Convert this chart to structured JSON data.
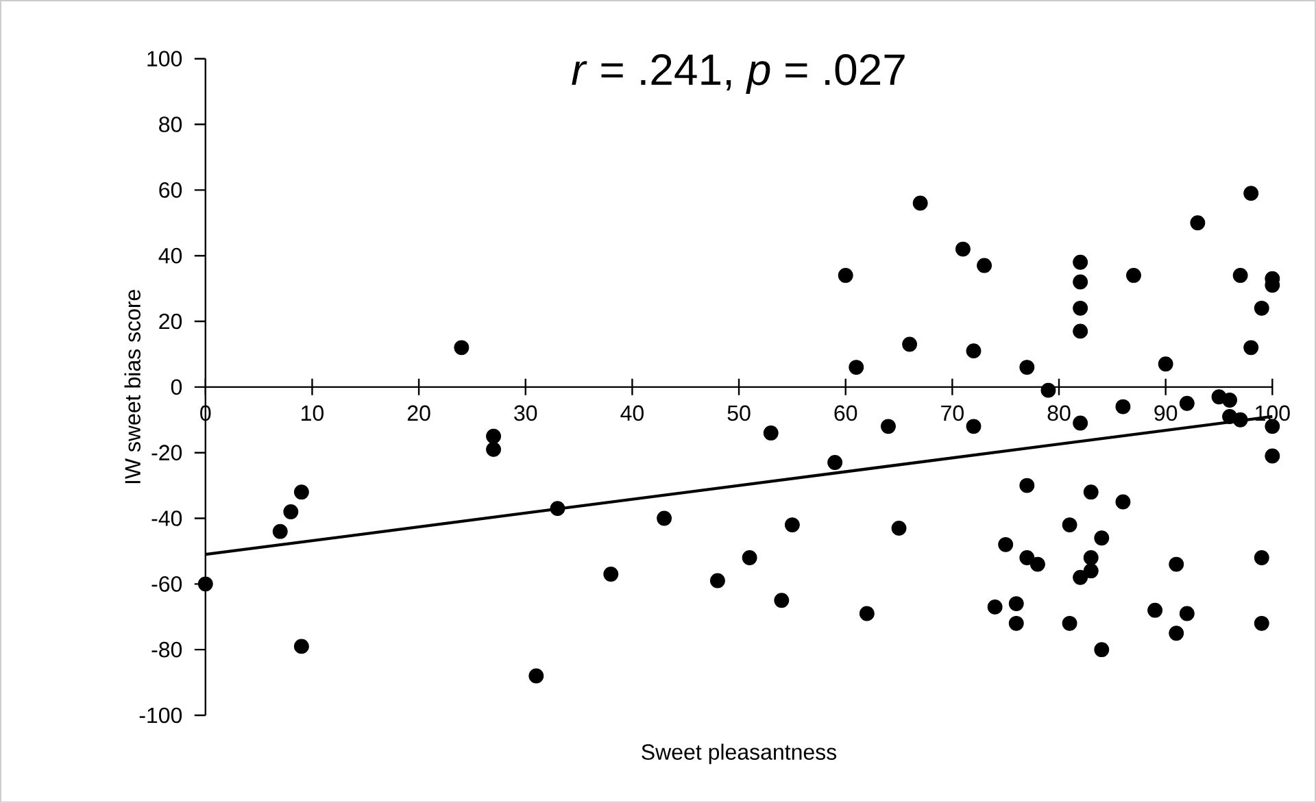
{
  "chart_data": {
    "type": "scatter",
    "title": "*r* = .241, *p* = .027",
    "xlabel": "Sweet pleasantness",
    "ylabel": "IW sweet bias score",
    "xlim": [
      0,
      100
    ],
    "xticks": [
      0,
      10,
      20,
      30,
      40,
      50,
      60,
      70,
      80,
      90,
      100
    ],
    "ylim": [
      -100,
      100
    ],
    "yticks": [
      -100,
      -80,
      -60,
      -40,
      -20,
      0,
      20,
      40,
      60,
      80,
      100
    ],
    "grid": false,
    "legend": false,
    "series": [
      {
        "color": "#000000",
        "marker": "circle",
        "x": [
          0,
          7,
          8,
          9,
          9,
          24,
          27,
          27,
          31,
          33,
          38,
          43,
          48,
          51,
          53,
          54,
          55,
          59,
          60,
          61,
          62,
          64,
          65,
          66,
          67,
          71,
          72,
          72,
          73,
          74,
          75,
          76,
          76,
          77,
          77,
          77,
          78,
          79,
          81,
          81,
          82,
          82,
          82,
          82,
          82,
          82,
          83,
          83,
          83,
          84,
          84,
          86,
          86,
          87,
          89,
          90,
          91,
          91,
          92,
          92,
          93,
          95,
          96,
          96,
          97,
          97,
          98,
          98,
          99,
          99,
          99,
          100,
          100,
          100,
          100
        ],
        "values": [
          -60,
          -44,
          -38,
          -32,
          -79,
          12,
          -15,
          -19,
          -88,
          -37,
          -57,
          -40,
          -59,
          -52,
          -14,
          -65,
          -42,
          -23,
          34,
          6,
          -69,
          -12,
          -43,
          13,
          56,
          42,
          11,
          -12,
          37,
          -67,
          -48,
          -66,
          -72,
          6,
          -30,
          -52,
          -54,
          -1,
          -42,
          -72,
          38,
          32,
          24,
          17,
          -11,
          -58,
          -32,
          -52,
          -56,
          -46,
          -80,
          -6,
          -35,
          34,
          -68,
          7,
          -54,
          -75,
          -5,
          -69,
          50,
          -3,
          -4,
          -9,
          -10,
          34,
          59,
          12,
          24,
          -52,
          -72,
          33,
          31,
          -12,
          -21
        ]
      },
      {
        "type": "line",
        "marker": "none",
        "color": "#000000",
        "x": [
          0,
          100
        ],
        "values": [
          -51,
          -9
        ]
      }
    ]
  }
}
